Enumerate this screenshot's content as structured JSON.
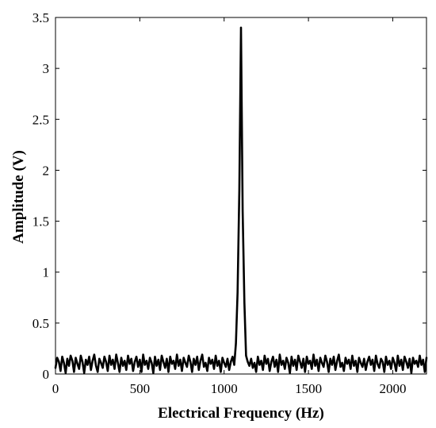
{
  "chart_data": {
    "type": "line",
    "title": "",
    "xlabel": "Electrical Frequency (Hz)",
    "ylabel": "Amplitude (V)",
    "xlim": [
      0,
      2200
    ],
    "ylim": [
      0,
      3.5
    ],
    "x_ticks": [
      0,
      500,
      1000,
      1500,
      2000
    ],
    "y_ticks": [
      0,
      0.5,
      1,
      1.5,
      2,
      2.5,
      3,
      3.5
    ],
    "x_tick_labels": [
      "0",
      "500",
      "1000",
      "1500",
      "2000"
    ],
    "y_tick_labels": [
      "0",
      "0.5",
      "1",
      "1.5",
      "2",
      "2.5",
      "3",
      "3.5"
    ],
    "grid": false,
    "line_color": "#000000",
    "series": [
      {
        "x": [
          0,
          10,
          20,
          30,
          40,
          50,
          60,
          70,
          80,
          90,
          100,
          110,
          120,
          130,
          140,
          150,
          160,
          170,
          180,
          190,
          200,
          210,
          220,
          230,
          240,
          250,
          260,
          270,
          280,
          290,
          300,
          310,
          320,
          330,
          340,
          350,
          360,
          370,
          380,
          390,
          400,
          410,
          420,
          430,
          440,
          450,
          460,
          470,
          480,
          490,
          500,
          510,
          520,
          530,
          540,
          550,
          560,
          570,
          580,
          590,
          600,
          610,
          620,
          630,
          640,
          650,
          660,
          670,
          680,
          690,
          700,
          710,
          720,
          730,
          740,
          750,
          760,
          770,
          780,
          790,
          800,
          810,
          820,
          830,
          840,
          850,
          860,
          870,
          880,
          890,
          900,
          910,
          920,
          930,
          940,
          950,
          960,
          970,
          980,
          990,
          1000,
          1010,
          1020,
          1030,
          1040,
          1050,
          1060,
          1070,
          1080,
          1090,
          1100,
          1110,
          1120,
          1130,
          1140,
          1150,
          1160,
          1170,
          1180,
          1190,
          1200,
          1210,
          1220,
          1230,
          1240,
          1250,
          1260,
          1270,
          1280,
          1290,
          1300,
          1310,
          1320,
          1330,
          1340,
          1350,
          1360,
          1370,
          1380,
          1390,
          1400,
          1410,
          1420,
          1430,
          1440,
          1450,
          1460,
          1470,
          1480,
          1490,
          1500,
          1510,
          1520,
          1530,
          1540,
          1550,
          1560,
          1570,
          1580,
          1590,
          1600,
          1610,
          1620,
          1630,
          1640,
          1650,
          1660,
          1670,
          1680,
          1690,
          1700,
          1710,
          1720,
          1730,
          1740,
          1750,
          1760,
          1770,
          1780,
          1790,
          1800,
          1810,
          1820,
          1830,
          1840,
          1850,
          1860,
          1870,
          1880,
          1890,
          1900,
          1910,
          1920,
          1930,
          1940,
          1950,
          1960,
          1970,
          1980,
          1990,
          2000,
          2010,
          2020,
          2030,
          2040,
          2050,
          2060,
          2070,
          2080,
          2090,
          2100,
          2110,
          2120,
          2130,
          2140,
          2150,
          2160,
          2170,
          2180,
          2190,
          2200
        ],
        "y": [
          0.06,
          0.16,
          0.12,
          0.03,
          0.17,
          0.11,
          0.01,
          0.15,
          0.08,
          0.18,
          0.13,
          0.02,
          0.16,
          0.1,
          0.05,
          0.18,
          0.12,
          0.01,
          0.14,
          0.09,
          0.17,
          0.04,
          0.13,
          0.19,
          0.08,
          0.02,
          0.15,
          0.11,
          0.06,
          0.17,
          0.12,
          0.03,
          0.18,
          0.09,
          0.14,
          0.05,
          0.19,
          0.11,
          0.02,
          0.16,
          0.08,
          0.13,
          0.04,
          0.18,
          0.1,
          0.15,
          0.03,
          0.12,
          0.17,
          0.07,
          0.14,
          0.02,
          0.19,
          0.09,
          0.13,
          0.05,
          0.16,
          0.11,
          0.01,
          0.17,
          0.08,
          0.14,
          0.04,
          0.18,
          0.12,
          0.06,
          0.15,
          0.02,
          0.17,
          0.1,
          0.13,
          0.05,
          0.19,
          0.08,
          0.14,
          0.03,
          0.16,
          0.11,
          0.07,
          0.18,
          0.12,
          0.02,
          0.15,
          0.09,
          0.17,
          0.04,
          0.13,
          0.19,
          0.07,
          0.11,
          0.03,
          0.16,
          0.1,
          0.14,
          0.05,
          0.18,
          0.08,
          0.13,
          0.02,
          0.16,
          0.11,
          0.07,
          0.15,
          0.04,
          0.12,
          0.17,
          0.09,
          0.3,
          0.8,
          1.8,
          3.4,
          1.6,
          0.7,
          0.18,
          0.12,
          0.08,
          0.15,
          0.06,
          0.11,
          0.02,
          0.17,
          0.09,
          0.13,
          0.04,
          0.18,
          0.1,
          0.15,
          0.03,
          0.12,
          0.17,
          0.07,
          0.14,
          0.02,
          0.19,
          0.09,
          0.13,
          0.05,
          0.16,
          0.11,
          0.01,
          0.17,
          0.08,
          0.14,
          0.04,
          0.18,
          0.12,
          0.06,
          0.15,
          0.02,
          0.17,
          0.1,
          0.13,
          0.05,
          0.19,
          0.08,
          0.14,
          0.03,
          0.16,
          0.11,
          0.07,
          0.18,
          0.12,
          0.02,
          0.15,
          0.09,
          0.17,
          0.04,
          0.13,
          0.19,
          0.07,
          0.11,
          0.03,
          0.16,
          0.1,
          0.14,
          0.05,
          0.18,
          0.08,
          0.13,
          0.02,
          0.16,
          0.11,
          0.07,
          0.15,
          0.04,
          0.12,
          0.17,
          0.09,
          0.14,
          0.03,
          0.18,
          0.1,
          0.06,
          0.15,
          0.12,
          0.02,
          0.17,
          0.09,
          0.13,
          0.05,
          0.16,
          0.11,
          0.03,
          0.18,
          0.08,
          0.14,
          0.04,
          0.17,
          0.12,
          0.06,
          0.15,
          0.01,
          0.16,
          0.1,
          0.13,
          0.07,
          0.18,
          0.09,
          0.14,
          0.02,
          0.16
        ]
      }
    ]
  }
}
